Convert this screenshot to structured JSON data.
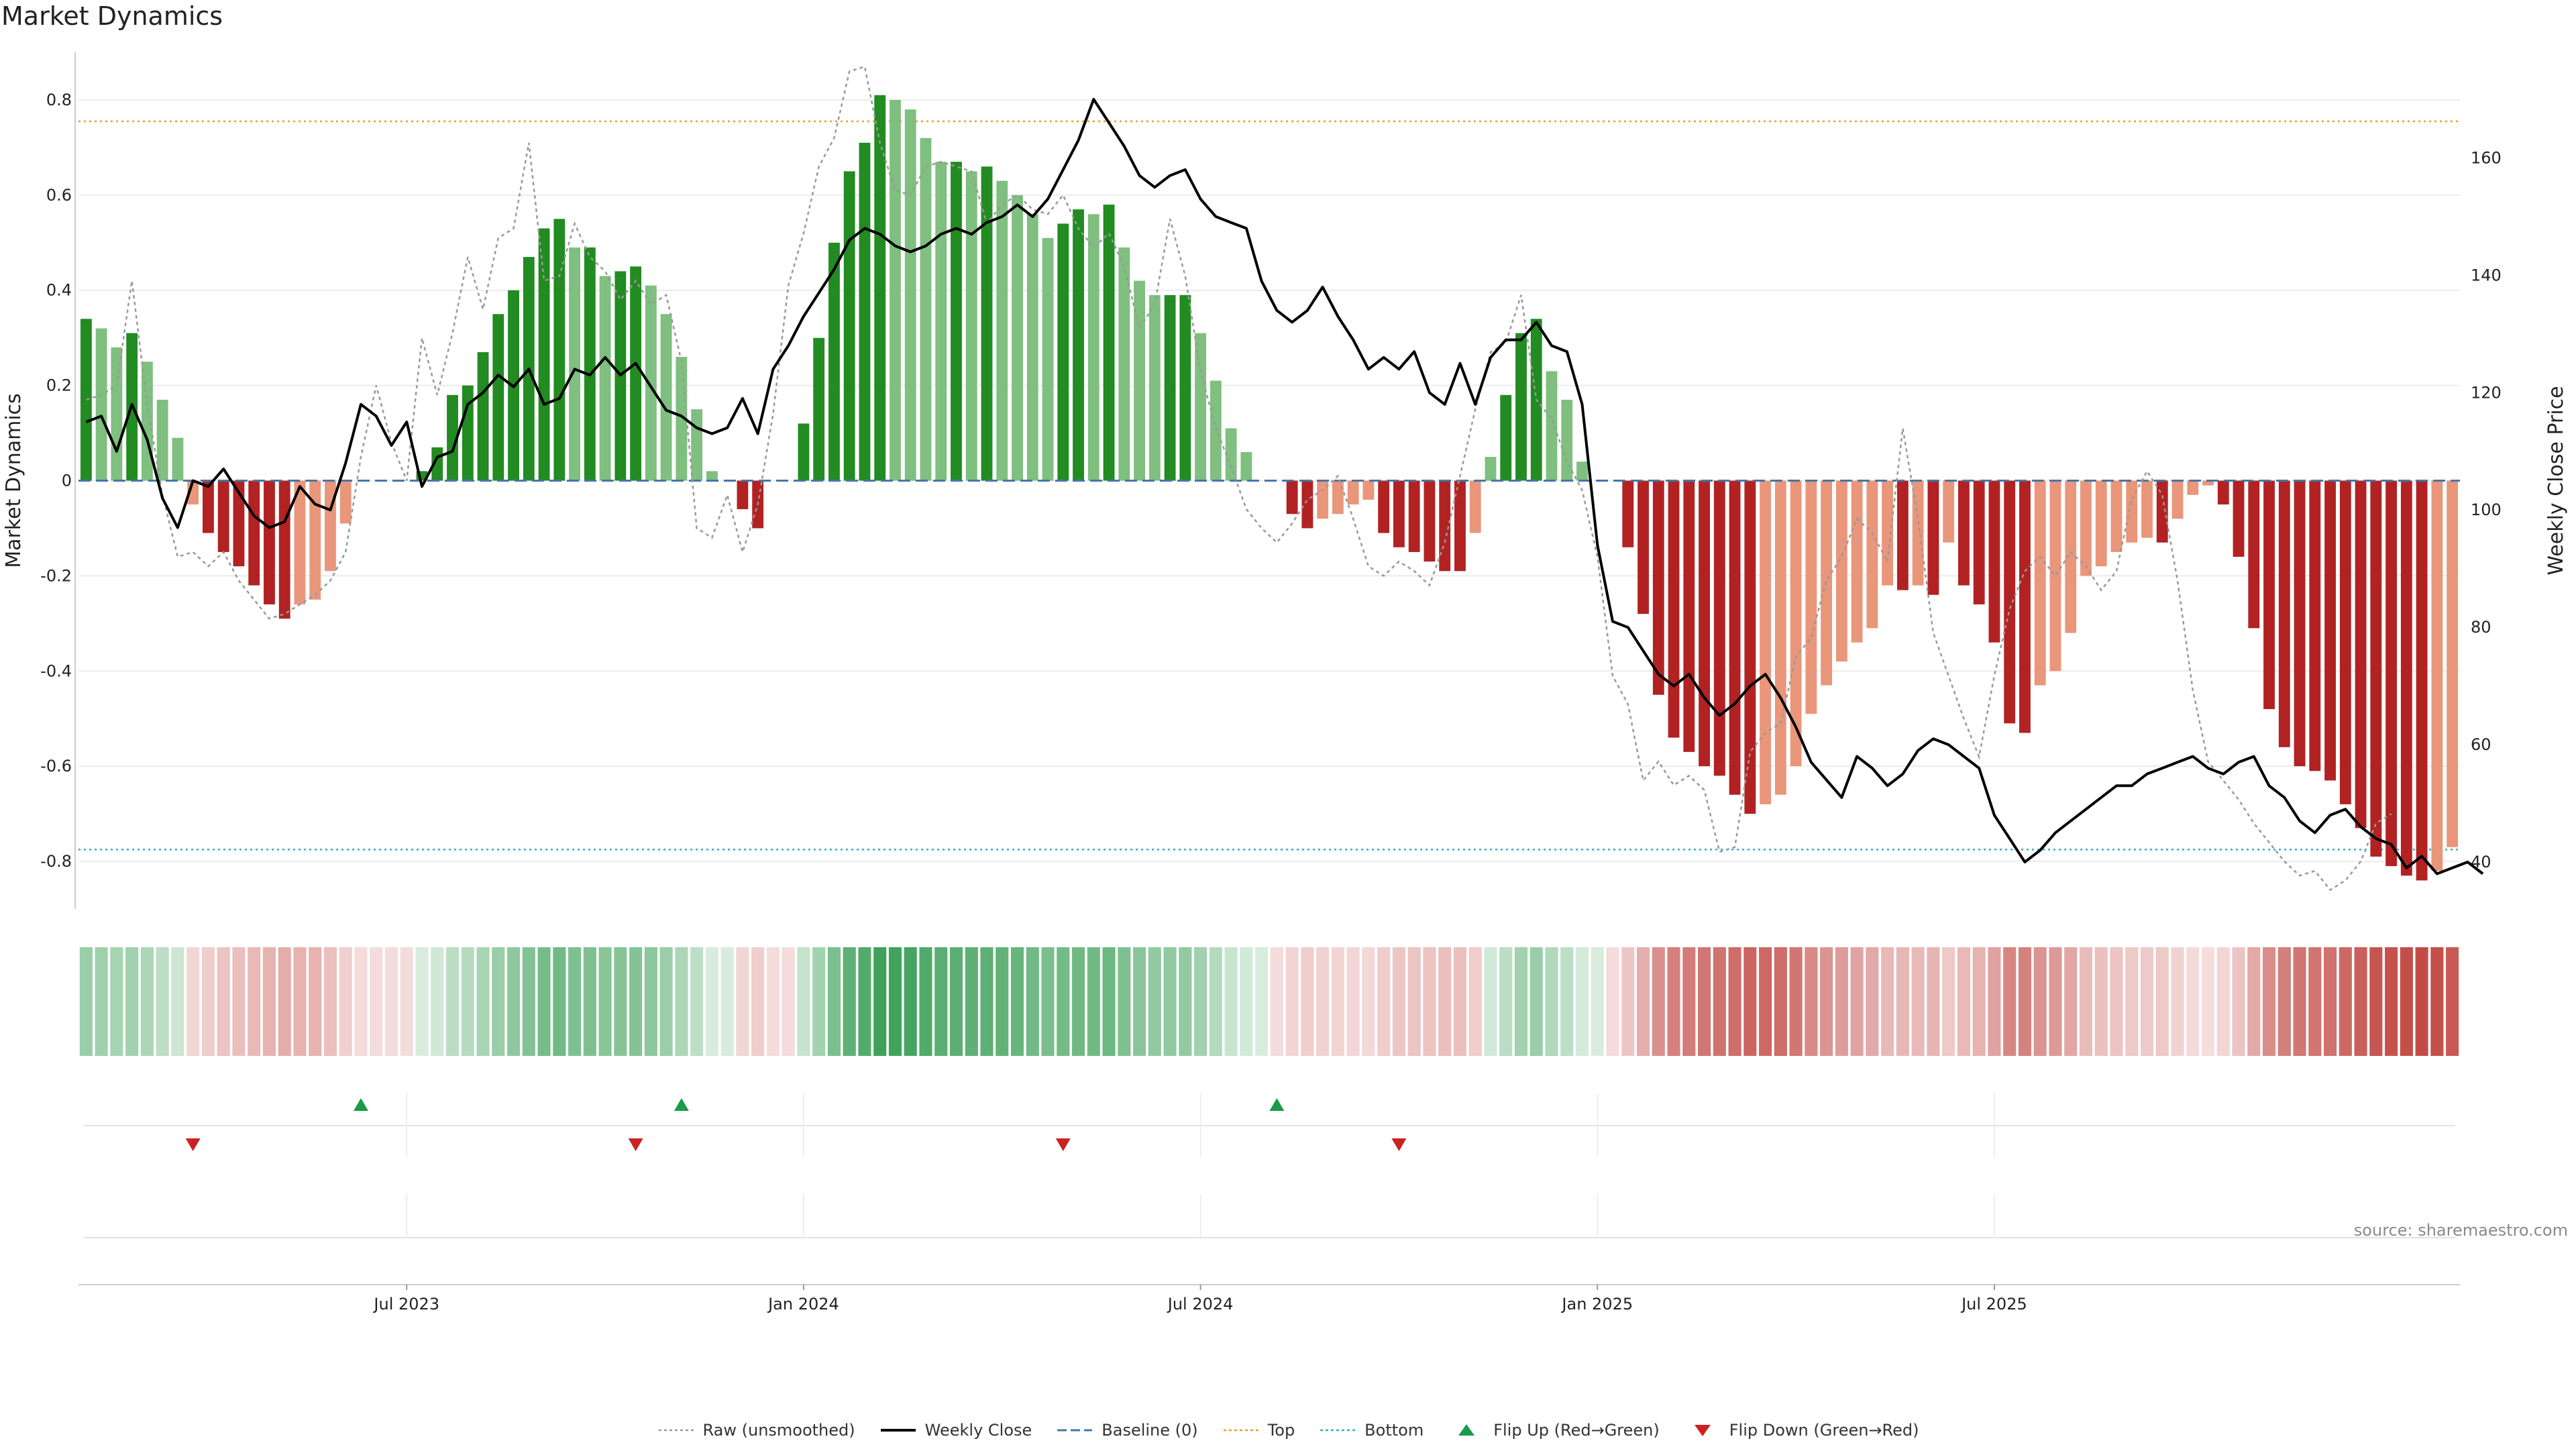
{
  "title": "Market Dynamics",
  "source": "source: sharemaestro.com",
  "colors": {
    "strong_up": "#228b22",
    "weak_up": "#7fbf7f",
    "strong_down": "#b22222",
    "weak_down": "#e9967a",
    "raw": "#999999",
    "close": "#000000",
    "baseline": "#4477aa",
    "top": "#e8a020",
    "bottom": "#2ab0c0",
    "flip_up": "#1a9a4a",
    "flip_down": "#cc2222"
  },
  "legend": [
    {
      "label": "Raw (unsmoothed)",
      "marker": "dotted-line",
      "color": "#999999"
    },
    {
      "label": "Weekly Close",
      "marker": "solid-line",
      "color": "#000000"
    },
    {
      "label": "Baseline (0)",
      "marker": "dashed-line",
      "color": "#4477aa"
    },
    {
      "label": "Top",
      "marker": "dotted-line",
      "color": "#e8a020"
    },
    {
      "label": "Bottom",
      "marker": "dotted-line",
      "color": "#2ab0c0"
    },
    {
      "label": "Flip Up (Red→Green)",
      "marker": "triangle-up",
      "color": "#1a9a4a"
    },
    {
      "label": "Flip Down (Green→Red)",
      "marker": "triangle-down",
      "color": "#cc2222"
    }
  ],
  "chart_data": {
    "type": "bar",
    "ylabel": "Market Dynamics",
    "y2label": "Weekly Close Price",
    "ylim": [
      -0.9,
      0.9
    ],
    "y2lim": [
      32,
      178
    ],
    "yticks": [
      "0.8",
      "0.6",
      "0.4",
      "0.2",
      "0",
      "-0.2",
      "-0.4",
      "-0.6",
      "-0.8"
    ],
    "y2ticks": [
      "160",
      "140",
      "120",
      "100",
      "80",
      "60",
      "40"
    ],
    "xticks": [
      {
        "label": "Jul 2023",
        "index": 21
      },
      {
        "label": "Jan 2024",
        "index": 47
      },
      {
        "label": "Jul 2024",
        "index": 73
      },
      {
        "label": "Jan 2025",
        "index": 99
      },
      {
        "label": "Jul 2025",
        "index": 125
      }
    ],
    "top_level": 0.755,
    "bottom_level": -0.775,
    "series": [
      {
        "name": "Market Dynamics",
        "values": [
          0.34,
          0.32,
          0.28,
          0.31,
          0.25,
          0.17,
          0.09,
          -0.05,
          -0.11,
          -0.15,
          -0.18,
          -0.22,
          -0.26,
          -0.29,
          -0.26,
          -0.25,
          -0.19,
          -0.09,
          0.0,
          0.0,
          0.0,
          0.0,
          0.02,
          0.07,
          0.18,
          0.2,
          0.27,
          0.35,
          0.4,
          0.47,
          0.53,
          0.55,
          0.49,
          0.49,
          0.43,
          0.44,
          0.45,
          0.41,
          0.35,
          0.26,
          0.15,
          0.02,
          0.0,
          -0.06,
          -0.1,
          0.0,
          0.0,
          0.12,
          0.3,
          0.5,
          0.65,
          0.71,
          0.81,
          0.8,
          0.78,
          0.72,
          0.67,
          0.67,
          0.65,
          0.66,
          0.63,
          0.6,
          0.56,
          0.51,
          0.54,
          0.57,
          0.56,
          0.58,
          0.49,
          0.42,
          0.39,
          0.39,
          0.39,
          0.31,
          0.21,
          0.11,
          0.06,
          0.0,
          0.0,
          -0.07,
          -0.1,
          -0.08,
          -0.07,
          -0.05,
          -0.04,
          -0.11,
          -0.14,
          -0.15,
          -0.17,
          -0.19,
          -0.19,
          -0.11,
          0.05,
          0.18,
          0.31,
          0.34,
          0.23,
          0.17,
          0.04,
          0.0,
          0.0,
          -0.14,
          -0.28,
          -0.45,
          -0.54,
          -0.57,
          -0.6,
          -0.62,
          -0.66,
          -0.7,
          -0.68,
          -0.66,
          -0.6,
          -0.49,
          -0.43,
          -0.38,
          -0.34,
          -0.31,
          -0.22,
          -0.23,
          -0.22,
          -0.24,
          -0.13,
          -0.22,
          -0.26,
          -0.34,
          -0.51,
          -0.53,
          -0.43,
          -0.4,
          -0.32,
          -0.2,
          -0.18,
          -0.15,
          -0.13,
          -0.12,
          -0.13,
          -0.08,
          -0.03,
          -0.01,
          -0.05,
          -0.16,
          -0.31,
          -0.48,
          -0.56,
          -0.6,
          -0.61,
          -0.63,
          -0.68,
          -0.73,
          -0.79,
          -0.81,
          -0.83,
          -0.84,
          -0.82,
          -0.77
        ]
      },
      {
        "name": "Raw (unsmoothed)",
        "values": [
          0.17,
          0.18,
          0.2,
          0.42,
          0.16,
          -0.03,
          -0.16,
          -0.15,
          -0.18,
          -0.15,
          -0.21,
          -0.25,
          -0.29,
          -0.28,
          -0.26,
          -0.24,
          -0.21,
          -0.15,
          0.05,
          0.2,
          0.08,
          0.0,
          0.3,
          0.18,
          0.31,
          0.47,
          0.36,
          0.51,
          0.53,
          0.71,
          0.42,
          0.43,
          0.54,
          0.47,
          0.44,
          0.38,
          0.42,
          0.37,
          0.39,
          0.25,
          -0.1,
          -0.12,
          -0.03,
          -0.15,
          -0.05,
          0.14,
          0.41,
          0.52,
          0.66,
          0.72,
          0.86,
          0.87,
          0.71,
          0.61,
          0.6,
          0.66,
          0.67,
          0.66,
          0.65,
          0.54,
          0.58,
          0.6,
          0.57,
          0.56,
          0.6,
          0.53,
          0.49,
          0.52,
          0.45,
          0.32,
          0.37,
          0.55,
          0.43,
          0.23,
          0.11,
          0.03,
          -0.06,
          -0.1,
          -0.13,
          -0.09,
          -0.04,
          -0.02,
          0.01,
          -0.08,
          -0.18,
          -0.2,
          -0.17,
          -0.19,
          -0.22,
          -0.13,
          0.01,
          0.15,
          0.27,
          0.29,
          0.39,
          0.17,
          0.13,
          0.04,
          -0.02,
          -0.16,
          -0.41,
          -0.47,
          -0.63,
          -0.59,
          -0.64,
          -0.62,
          -0.65,
          -0.78,
          -0.77,
          -0.57,
          -0.53,
          -0.51,
          -0.37,
          -0.33,
          -0.21,
          -0.16,
          -0.08,
          -0.11,
          -0.17,
          0.11,
          -0.08,
          -0.32,
          -0.41,
          -0.5,
          -0.58,
          -0.41,
          -0.27,
          -0.19,
          -0.16,
          -0.2,
          -0.15,
          -0.18,
          -0.23,
          -0.19,
          -0.04,
          0.02,
          -0.03,
          -0.21,
          -0.44,
          -0.59,
          -0.63,
          -0.67,
          -0.72,
          -0.76,
          -0.8,
          -0.83,
          -0.82,
          -0.86,
          -0.84,
          -0.8,
          -0.72,
          -0.7
        ]
      },
      {
        "name": "Weekly Close",
        "values": [
          115,
          116,
          110,
          118,
          112,
          102,
          97,
          105,
          104,
          107,
          103,
          99,
          97,
          98,
          104,
          101,
          100,
          108,
          118,
          116,
          111,
          115,
          104,
          109,
          110,
          118,
          120,
          123,
          121,
          124,
          118,
          119,
          124,
          123,
          126,
          123,
          125,
          121,
          117,
          116,
          114,
          113,
          114,
          119,
          113,
          124,
          128,
          133,
          137,
          141,
          146,
          148,
          147,
          145,
          144,
          145,
          147,
          148,
          147,
          149,
          150,
          152,
          150,
          153,
          158,
          163,
          170,
          166,
          162,
          157,
          155,
          157,
          158,
          153,
          150,
          149,
          148,
          139,
          134,
          132,
          134,
          138,
          133,
          129,
          124,
          126,
          124,
          127,
          120,
          118,
          125,
          118,
          126,
          129,
          129,
          132,
          128,
          127,
          118,
          94,
          81,
          80,
          76,
          72,
          70,
          72,
          68,
          65,
          67,
          70,
          72,
          68,
          63,
          57,
          54,
          51,
          58,
          56,
          53,
          55,
          59,
          61,
          60,
          58,
          56,
          48,
          44,
          40,
          42,
          45,
          47,
          49,
          51,
          53,
          53,
          55,
          56,
          57,
          58,
          56,
          55,
          57,
          58,
          53,
          51,
          47,
          45,
          48,
          49,
          46,
          44,
          43,
          39,
          41,
          38,
          39,
          40,
          38
        ]
      },
      {
        "name": "Flip Up (Red→Green)",
        "indices": [
          18,
          39,
          78
        ]
      },
      {
        "name": "Flip Down (Green→Red)",
        "indices": [
          7,
          36,
          64,
          86
        ]
      }
    ]
  }
}
